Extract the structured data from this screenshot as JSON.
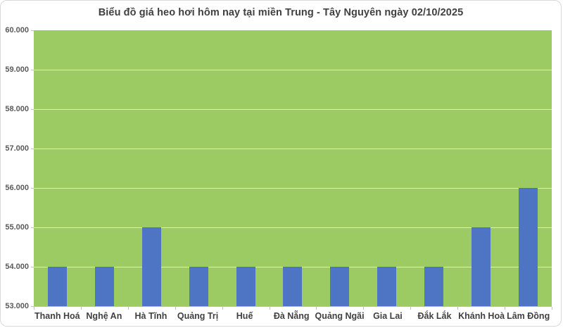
{
  "title": "Biểu đồ giá heo hơi hôm nay tại miền Trung - Tây Nguyên ngày 02/10/2025",
  "colors": {
    "bar": "#4E74C4",
    "plot_background": "#9CCB63",
    "gridline": "rgba(255,255,255,0.65)",
    "frame_border": "#D9D9D9",
    "title_text": "#404040",
    "axis_text": "#595959",
    "category_text": "#404040"
  },
  "chart_data": {
    "type": "bar",
    "title": "Biểu đồ giá heo hơi hôm nay tại miền Trung - Tây Nguyên ngày 02/10/2025",
    "categories": [
      "Thanh Hoá",
      "Nghệ An",
      "Hà Tĩnh",
      "Quảng Trị",
      "Huế",
      "Đà Nẵng",
      "Quảng Ngãi",
      "Gia Lai",
      "Đắk Lắk",
      "Khánh Hoà",
      "Lâm Đồng"
    ],
    "values": [
      54000,
      54000,
      55000,
      54000,
      54000,
      54000,
      54000,
      54000,
      54000,
      55000,
      56000
    ],
    "y_tick_labels": [
      "60.000",
      "59.000",
      "58.000",
      "57.000",
      "56.000",
      "55.000",
      "54.000",
      "53.000"
    ],
    "y_tick_values": [
      60000,
      59000,
      58000,
      57000,
      56000,
      55000,
      54000,
      53000
    ],
    "ylim": [
      53000,
      60000
    ],
    "y_tick_step": 1000,
    "xlabel": "",
    "ylabel": "",
    "grid": true,
    "legend": false,
    "legend_position": "none"
  }
}
